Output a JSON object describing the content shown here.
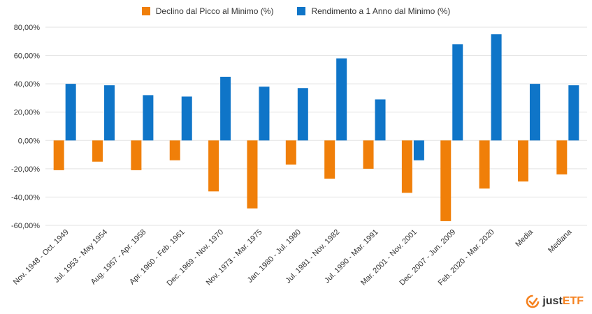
{
  "chart_data": {
    "type": "bar",
    "categories": [
      "Nov. 1948 - Oct. 1949",
      "Jul. 1953 - May 1954",
      "Aug. 1957 - Apr. 1958",
      "Apr. 1960 - Feb. 1961",
      "Dec. 1969 - Nov. 1970",
      "Nov. 1973 - Mar. 1975",
      "Jan. 1980 - Jul. 1980",
      "Jul. 1981 - Nov. 1982",
      "Jul. 1990 - Mar. 1991",
      "Mar. 2001 - Nov. 2001",
      "Dec. 2007 - Jun. 2009",
      "Feb. 2020 - Mar. 2020",
      "Media",
      "Mediana"
    ],
    "series": [
      {
        "name": "Declino dal Picco al Minimo (%)",
        "color": "#f07f09",
        "values": [
          -21,
          -15,
          -21,
          -14,
          -36,
          -48,
          -17,
          -27,
          -20,
          -37,
          -57,
          -34,
          -29,
          -24
        ]
      },
      {
        "name": "Rendimento a 1 Anno dal Minimo (%)",
        "color": "#0f75c8",
        "values": [
          40,
          39,
          32,
          31,
          45,
          38,
          37,
          58,
          29,
          -14,
          68,
          75,
          40,
          39
        ]
      }
    ],
    "yticks": [
      "80,00%",
      "60,00%",
      "40,00%",
      "20,00%",
      "0,00%",
      "-20,00%",
      "-40,00%",
      "-60,00%"
    ],
    "ylim": [
      -60,
      80
    ],
    "title": "",
    "xlabel": "",
    "ylabel": "",
    "grid": true,
    "legend_position": "top-center"
  },
  "brand": {
    "name_part1": "just",
    "name_part2": "ETF",
    "accent": "#f58220"
  }
}
